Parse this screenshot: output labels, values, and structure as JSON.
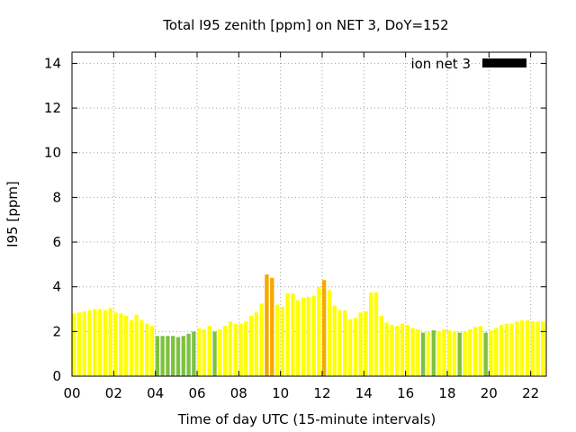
{
  "chart_data": {
    "type": "bar",
    "title": "Total I95 zenith [ppm] on NET 3, DoY=152",
    "xlabel": "Time of day UTC (15-minute intervals)",
    "ylabel": "I95 [ppm]",
    "xlim": [
      0,
      22.75
    ],
    "ylim": [
      0,
      14.5
    ],
    "bar_interval_hours": 0.25,
    "x_ticks": [
      {
        "value": 0,
        "label": "00"
      },
      {
        "value": 2,
        "label": "02"
      },
      {
        "value": 4,
        "label": "04"
      },
      {
        "value": 6,
        "label": "06"
      },
      {
        "value": 8,
        "label": "08"
      },
      {
        "value": 10,
        "label": "10"
      },
      {
        "value": 12,
        "label": "12"
      },
      {
        "value": 14,
        "label": "14"
      },
      {
        "value": 16,
        "label": "16"
      },
      {
        "value": 18,
        "label": "18"
      },
      {
        "value": 20,
        "label": "20"
      },
      {
        "value": 22,
        "label": "22"
      }
    ],
    "y_ticks": [
      {
        "value": 0,
        "label": "0"
      },
      {
        "value": 2,
        "label": "2"
      },
      {
        "value": 4,
        "label": "4"
      },
      {
        "value": 6,
        "label": "6"
      },
      {
        "value": 8,
        "label": "8"
      },
      {
        "value": 10,
        "label": "10"
      },
      {
        "value": 12,
        "label": "12"
      },
      {
        "value": 14,
        "label": "14"
      }
    ],
    "grid": true,
    "legend": {
      "label": "ion net 3",
      "position": "top-right",
      "color": "#000000"
    },
    "colors": {
      "green": "#7dc142",
      "yellow": "#ffff00",
      "orange": "#f5a800"
    },
    "series": [
      {
        "x": [
          0.0,
          0.25,
          0.5,
          0.75,
          1.0,
          1.25,
          1.5,
          1.75,
          2.0,
          2.25,
          2.5,
          2.75,
          3.0,
          3.25,
          3.5,
          3.75,
          4.0,
          4.25,
          4.5,
          4.75,
          5.0,
          5.25,
          5.5,
          5.75,
          6.0,
          6.25,
          6.5,
          6.75,
          7.0,
          7.25,
          7.5,
          7.75,
          8.0,
          8.25,
          8.5,
          8.75,
          9.0,
          9.25,
          9.5,
          9.75,
          10.0,
          10.25,
          10.5,
          10.75,
          11.0,
          11.25,
          11.5,
          11.75,
          12.0,
          12.25,
          12.5,
          12.75,
          13.0,
          13.25,
          13.5,
          13.75,
          14.0,
          14.25,
          14.5,
          14.75,
          15.0,
          15.25,
          15.5,
          15.75,
          16.0,
          16.25,
          16.5,
          16.75,
          17.0,
          17.25,
          17.5,
          17.75,
          18.0,
          18.25,
          18.5,
          18.75,
          19.0,
          19.25,
          19.5,
          19.75,
          20.0,
          20.25,
          20.5,
          20.75,
          21.0,
          21.25,
          21.5,
          21.75,
          22.0,
          22.25,
          22.5
        ],
        "values": [
          2.8,
          2.85,
          2.9,
          2.95,
          3.0,
          3.0,
          2.95,
          3.05,
          2.85,
          2.8,
          2.7,
          2.5,
          2.75,
          2.5,
          2.35,
          2.25,
          1.8,
          1.8,
          1.8,
          1.8,
          1.75,
          1.8,
          1.9,
          2.0,
          2.15,
          2.1,
          2.25,
          2.0,
          2.1,
          2.25,
          2.45,
          2.35,
          2.35,
          2.45,
          2.7,
          2.85,
          3.25,
          4.55,
          4.4,
          3.2,
          3.1,
          3.7,
          3.7,
          3.4,
          3.5,
          3.55,
          3.6,
          4.0,
          4.3,
          3.85,
          3.15,
          2.95,
          2.95,
          2.55,
          2.6,
          2.85,
          2.9,
          3.75,
          3.75,
          2.7,
          2.4,
          2.3,
          2.25,
          2.35,
          2.3,
          2.15,
          2.1,
          1.95,
          2.0,
          2.05,
          2.0,
          2.1,
          2.05,
          2.0,
          1.95,
          2.0,
          2.1,
          2.2,
          2.25,
          1.95,
          2.05,
          2.15,
          2.3,
          2.35,
          2.35,
          2.45,
          2.5,
          2.5,
          2.45,
          2.45,
          2.45
        ],
        "colors": [
          "yellow",
          "yellow",
          "yellow",
          "yellow",
          "yellow",
          "yellow",
          "yellow",
          "yellow",
          "yellow",
          "yellow",
          "yellow",
          "yellow",
          "yellow",
          "yellow",
          "yellow",
          "yellow",
          "green",
          "green",
          "green",
          "green",
          "green",
          "green",
          "green",
          "green",
          "yellow",
          "yellow",
          "yellow",
          "green",
          "yellow",
          "yellow",
          "yellow",
          "yellow",
          "yellow",
          "yellow",
          "yellow",
          "yellow",
          "yellow",
          "orange",
          "orange",
          "yellow",
          "yellow",
          "yellow",
          "yellow",
          "yellow",
          "yellow",
          "yellow",
          "yellow",
          "yellow",
          "orange",
          "yellow",
          "yellow",
          "yellow",
          "yellow",
          "yellow",
          "yellow",
          "yellow",
          "yellow",
          "yellow",
          "yellow",
          "yellow",
          "yellow",
          "yellow",
          "yellow",
          "yellow",
          "yellow",
          "yellow",
          "yellow",
          "green",
          "yellow",
          "green",
          "yellow",
          "yellow",
          "yellow",
          "yellow",
          "green",
          "yellow",
          "yellow",
          "yellow",
          "yellow",
          "green",
          "yellow",
          "yellow",
          "yellow",
          "yellow",
          "yellow",
          "yellow",
          "yellow",
          "yellow",
          "yellow",
          "yellow",
          "yellow"
        ]
      }
    ]
  }
}
